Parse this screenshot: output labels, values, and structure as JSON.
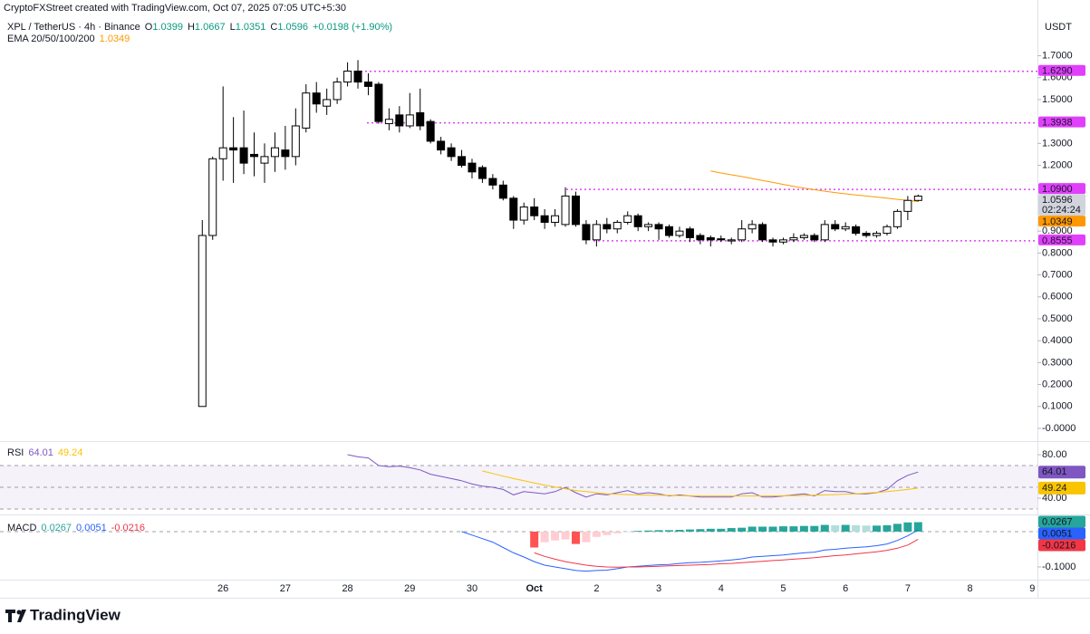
{
  "header": {
    "credit": "CryptoFXStreet created with TradingView.com, Oct 07, 2025 07:05 UTC+5:30",
    "symbol": "XPL / TetherUS · 4h · Binance",
    "ohlc_labels": [
      "O",
      "H",
      "L",
      "C"
    ],
    "change": "+0.0198 (+1.90%)",
    "currency": "USDT",
    "brand": "TradingView"
  },
  "chart_data": {
    "type": "candlestick",
    "xlim": [
      -19.5,
      80.5
    ],
    "xticks": [
      {
        "value": 2,
        "label": "26"
      },
      {
        "value": 8,
        "label": "27"
      },
      {
        "value": 14,
        "label": "28"
      },
      {
        "value": 20,
        "label": "29"
      },
      {
        "value": 26,
        "label": "30"
      },
      {
        "value": 32,
        "label": "Oct"
      },
      {
        "value": 38,
        "label": "2"
      },
      {
        "value": 44,
        "label": "3"
      },
      {
        "value": 50,
        "label": "4"
      },
      {
        "value": 56,
        "label": "5"
      },
      {
        "value": 62,
        "label": "6"
      },
      {
        "value": 68,
        "label": "7"
      },
      {
        "value": 74,
        "label": "8"
      },
      {
        "value": 80,
        "label": "9"
      }
    ],
    "ylim": [
      -0.058,
      1.789
    ],
    "yticks": [
      {
        "value": 1.7,
        "label": "1.7000"
      },
      {
        "value": 1.6,
        "label": "1.6000"
      },
      {
        "value": 1.5,
        "label": "1.5000"
      },
      {
        "value": 1.3,
        "label": "1.3000"
      },
      {
        "value": 1.2,
        "label": "1.2000"
      },
      {
        "value": 0.9,
        "label": "0.9000"
      },
      {
        "value": 0.8,
        "label": "0.8000"
      },
      {
        "value": 0.7,
        "label": "0.7000"
      },
      {
        "value": 0.6,
        "label": "0.6000"
      },
      {
        "value": 0.5,
        "label": "0.5000"
      },
      {
        "value": 0.4,
        "label": "0.4000"
      },
      {
        "value": 0.3,
        "label": "0.3000"
      },
      {
        "value": 0.2,
        "label": "0.2000"
      },
      {
        "value": 0.1,
        "label": "0.1000"
      },
      {
        "value": 0,
        "label": "-0.0000"
      }
    ],
    "up_color": "#ffffff",
    "down_color": "#000000",
    "change_color": "#089981",
    "candles": [
      [
        0.1,
        0.95,
        0.1,
        0.88
      ],
      [
        0.88,
        1.24,
        0.86,
        1.23
      ],
      [
        1.23,
        1.56,
        1.13,
        1.28
      ],
      [
        1.28,
        1.42,
        1.12,
        1.27
      ],
      [
        1.28,
        1.45,
        1.16,
        1.21
      ],
      [
        1.25,
        1.35,
        1.15,
        1.24
      ],
      [
        1.21,
        1.3,
        1.12,
        1.24
      ],
      [
        1.24,
        1.35,
        1.17,
        1.28
      ],
      [
        1.27,
        1.38,
        1.18,
        1.24
      ],
      [
        1.24,
        1.46,
        1.2,
        1.38
      ],
      [
        1.37,
        1.57,
        1.35,
        1.53
      ],
      [
        1.53,
        1.58,
        1.44,
        1.48
      ],
      [
        1.47,
        1.55,
        1.43,
        1.5
      ],
      [
        1.5,
        1.6,
        1.48,
        1.58
      ],
      [
        1.58,
        1.67,
        1.56,
        1.63
      ],
      [
        1.63,
        1.68,
        1.55,
        1.58
      ],
      [
        1.58,
        1.62,
        1.52,
        1.56
      ],
      [
        1.57,
        1.58,
        1.39,
        1.4
      ],
      [
        1.39,
        1.46,
        1.36,
        1.41
      ],
      [
        1.43,
        1.47,
        1.35,
        1.38
      ],
      [
        1.38,
        1.53,
        1.37,
        1.43
      ],
      [
        1.44,
        1.55,
        1.36,
        1.38
      ],
      [
        1.4,
        1.41,
        1.3,
        1.31
      ],
      [
        1.31,
        1.33,
        1.25,
        1.27
      ],
      [
        1.28,
        1.3,
        1.22,
        1.24
      ],
      [
        1.24,
        1.27,
        1.19,
        1.2
      ],
      [
        1.21,
        1.23,
        1.14,
        1.17
      ],
      [
        1.19,
        1.2,
        1.12,
        1.14
      ],
      [
        1.14,
        1.16,
        1.09,
        1.11
      ],
      [
        1.11,
        1.13,
        1.04,
        1.05
      ],
      [
        1.05,
        1.06,
        0.91,
        0.95
      ],
      [
        0.95,
        1.03,
        0.93,
        1.01
      ],
      [
        1.01,
        1.05,
        0.95,
        0.97
      ],
      [
        0.97,
        1.0,
        0.91,
        0.94
      ],
      [
        0.94,
        1.0,
        0.92,
        0.97
      ],
      [
        0.93,
        1.1,
        0.92,
        1.06
      ],
      [
        1.06,
        1.08,
        0.92,
        0.93
      ],
      [
        0.93,
        0.95,
        0.84,
        0.86
      ],
      [
        0.86,
        0.95,
        0.83,
        0.93
      ],
      [
        0.93,
        0.96,
        0.89,
        0.91
      ],
      [
        0.91,
        0.95,
        0.89,
        0.94
      ],
      [
        0.94,
        0.99,
        0.93,
        0.97
      ],
      [
        0.97,
        0.98,
        0.9,
        0.92
      ],
      [
        0.92,
        0.94,
        0.9,
        0.93
      ],
      [
        0.93,
        0.94,
        0.86,
        0.91
      ],
      [
        0.92,
        0.93,
        0.87,
        0.88
      ],
      [
        0.88,
        0.92,
        0.87,
        0.9
      ],
      [
        0.91,
        0.92,
        0.85,
        0.87
      ],
      [
        0.88,
        0.89,
        0.84,
        0.86
      ],
      [
        0.87,
        0.88,
        0.83,
        0.86
      ],
      [
        0.865,
        0.88,
        0.85,
        0.86
      ],
      [
        0.855,
        0.87,
        0.84,
        0.86
      ],
      [
        0.86,
        0.95,
        0.85,
        0.91
      ],
      [
        0.91,
        0.95,
        0.89,
        0.93
      ],
      [
        0.93,
        0.94,
        0.85,
        0.86
      ],
      [
        0.86,
        0.87,
        0.83,
        0.85
      ],
      [
        0.85,
        0.87,
        0.84,
        0.86
      ],
      [
        0.86,
        0.89,
        0.85,
        0.87
      ],
      [
        0.87,
        0.89,
        0.86,
        0.88
      ],
      [
        0.88,
        0.89,
        0.85,
        0.86
      ],
      [
        0.86,
        0.95,
        0.85,
        0.93
      ],
      [
        0.93,
        0.95,
        0.9,
        0.91
      ],
      [
        0.91,
        0.94,
        0.9,
        0.92
      ],
      [
        0.92,
        0.93,
        0.88,
        0.89
      ],
      [
        0.89,
        0.9,
        0.87,
        0.88
      ],
      [
        0.88,
        0.9,
        0.87,
        0.89
      ],
      [
        0.89,
        0.93,
        0.88,
        0.92
      ],
      [
        0.92,
        1.0,
        0.91,
        0.99
      ],
      [
        0.99,
        1.06,
        0.95,
        1.04
      ],
      [
        1.0399,
        1.0667,
        1.0351,
        1.0596
      ]
    ],
    "countdown": "02:24:24",
    "price_box_color": "#d1d4dc",
    "level_color": "#e040fb",
    "levels": [
      {
        "value": 1.629,
        "label": "1.6290"
      },
      1.3938,
      {
        "value": 1.09,
        "label": "1.0900"
      },
      0.8555
    ],
    "ema": {
      "name": "EMA 20/50/100/200",
      "color": "#ff9800",
      "values": [
        null,
        null,
        null,
        null,
        null,
        null,
        null,
        null,
        null,
        null,
        null,
        null,
        null,
        null,
        null,
        null,
        null,
        null,
        null,
        null,
        null,
        null,
        null,
        null,
        null,
        null,
        null,
        null,
        null,
        null,
        null,
        null,
        null,
        null,
        null,
        null,
        null,
        null,
        null,
        null,
        null,
        null,
        null,
        null,
        null,
        null,
        null,
        null,
        null,
        1.174,
        1.165,
        1.157,
        1.149,
        1.14,
        1.131,
        1.122,
        1.113,
        1.104,
        1.096,
        1.089,
        1.082,
        1.076,
        1.07,
        1.065,
        1.06,
        1.055,
        1.05,
        1.045,
        1.04,
        1.0349
      ]
    },
    "rsi": {
      "label": "RSI",
      "ylim": [
        25,
        91.7
      ],
      "yticks": [
        {
          "value": 80,
          "label": "80.00"
        },
        {
          "value": 40,
          "label": "40.00"
        }
      ],
      "bands": [
        30,
        50,
        70
      ],
      "band_color": "#7e57c2",
      "series": [
        {
          "color": "#7e57c2",
          "values": [
            null,
            null,
            null,
            null,
            null,
            null,
            null,
            null,
            null,
            null,
            null,
            null,
            null,
            null,
            80,
            78,
            77,
            70,
            69,
            69.5,
            68,
            66,
            62,
            60,
            58,
            56,
            53,
            51,
            50,
            48,
            43,
            46,
            45,
            44,
            46,
            50,
            45,
            41,
            44,
            43,
            45,
            47,
            44,
            45,
            44,
            42,
            43,
            42,
            41,
            41,
            41,
            41,
            44,
            45,
            41,
            41,
            42,
            43,
            44,
            42,
            47,
            46,
            46,
            44,
            44,
            45,
            48,
            56,
            61,
            64.01
          ]
        },
        {
          "color": "#f9c400",
          "values": [
            null,
            null,
            null,
            null,
            null,
            null,
            null,
            null,
            null,
            null,
            null,
            null,
            null,
            null,
            null,
            null,
            null,
            null,
            null,
            null,
            null,
            null,
            null,
            null,
            null,
            null,
            null,
            65,
            62.7,
            60.3,
            58,
            56,
            54,
            52,
            50.3,
            48.7,
            47,
            46,
            45,
            44,
            43.7,
            43.3,
            43,
            42.8,
            42.7,
            42.5,
            42.3,
            42.2,
            42,
            42,
            42,
            42,
            42,
            42,
            42,
            42.1,
            42.2,
            42.3,
            42.5,
            42.8,
            43,
            43.3,
            43.7,
            44,
            44.7,
            45.3,
            46,
            47,
            48,
            49.24
          ]
        }
      ]
    },
    "macd": {
      "label": "MACD",
      "ylim": [
        -0.136,
        0.046
      ],
      "yticks": [
        {
          "value": -0.1,
          "label": "-0.1000"
        }
      ],
      "histogram": {
        "colors": [
          "#26a69a",
          "#b2dfdb",
          "#ff5252",
          "#ffcdd2"
        ],
        "values": [
          null,
          null,
          null,
          null,
          null,
          null,
          null,
          null,
          null,
          null,
          null,
          null,
          null,
          null,
          null,
          null,
          null,
          null,
          null,
          null,
          null,
          null,
          null,
          null,
          null,
          null,
          null,
          null,
          null,
          null,
          null,
          null,
          -0.045,
          -0.03,
          -0.025,
          -0.022,
          -0.035,
          -0.03,
          -0.015,
          -0.01,
          -0.005,
          0.0,
          0.002,
          0.003,
          0.004,
          0.004,
          0.005,
          0.006,
          0.007,
          0.008,
          0.008,
          0.01,
          0.011,
          0.014,
          0.014,
          0.014,
          0.015,
          0.015,
          0.016,
          0.016,
          0.019,
          0.018,
          0.019,
          0.018,
          0.017,
          0.017,
          0.018,
          0.022,
          0.026,
          0.0267
        ]
      },
      "series": [
        {
          "color": "#2962ff",
          "values": [
            null,
            null,
            null,
            null,
            null,
            null,
            null,
            null,
            null,
            null,
            null,
            null,
            null,
            null,
            null,
            null,
            null,
            null,
            null,
            null,
            null,
            null,
            null,
            null,
            null,
            0.0,
            -0.01,
            -0.02,
            -0.03,
            -0.045,
            -0.06,
            -0.072,
            -0.085,
            -0.095,
            -0.1,
            -0.105,
            -0.11,
            -0.112,
            -0.11,
            -0.109,
            -0.105,
            -0.1,
            -0.098,
            -0.096,
            -0.094,
            -0.093,
            -0.09,
            -0.088,
            -0.087,
            -0.085,
            -0.083,
            -0.08,
            -0.077,
            -0.072,
            -0.07,
            -0.068,
            -0.066,
            -0.063,
            -0.06,
            -0.058,
            -0.052,
            -0.05,
            -0.047,
            -0.045,
            -0.043,
            -0.04,
            -0.035,
            -0.025,
            -0.012,
            0.0051
          ]
        },
        {
          "color": "#f23645",
          "values": [
            null,
            null,
            null,
            null,
            null,
            null,
            null,
            null,
            null,
            null,
            null,
            null,
            null,
            null,
            null,
            null,
            null,
            null,
            null,
            null,
            null,
            null,
            null,
            null,
            null,
            null,
            null,
            null,
            null,
            null,
            null,
            null,
            -0.06,
            -0.07,
            -0.078,
            -0.085,
            -0.09,
            -0.095,
            -0.098,
            -0.1,
            -0.101,
            -0.1,
            -0.1,
            -0.099,
            -0.098,
            -0.097,
            -0.096,
            -0.095,
            -0.094,
            -0.093,
            -0.091,
            -0.09,
            -0.088,
            -0.086,
            -0.084,
            -0.082,
            -0.08,
            -0.078,
            -0.076,
            -0.074,
            -0.071,
            -0.068,
            -0.066,
            -0.063,
            -0.06,
            -0.057,
            -0.053,
            -0.047,
            -0.038,
            -0.0216
          ]
        }
      ]
    }
  }
}
